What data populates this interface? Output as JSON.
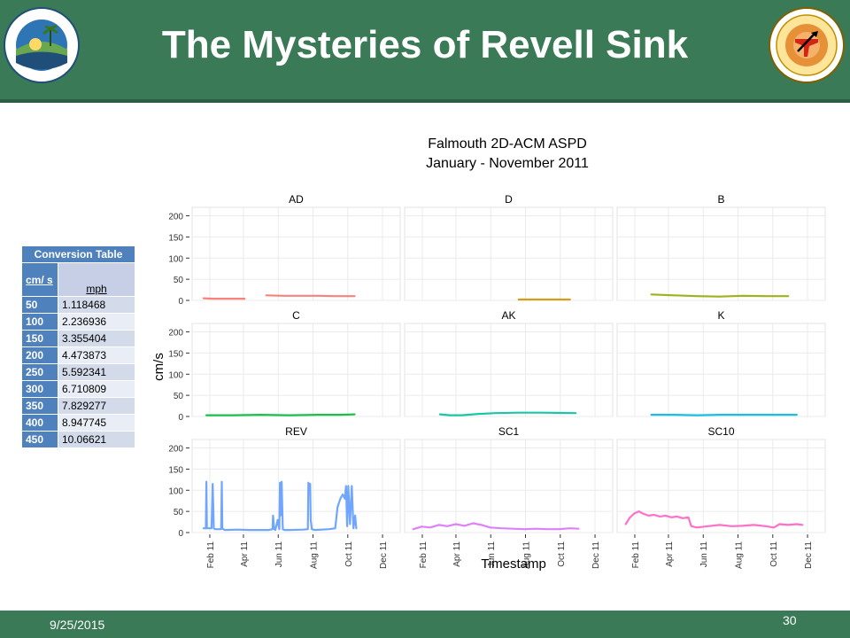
{
  "slide": {
    "title": "The Mysteries of Revell Sink",
    "date": "9/25/2015",
    "page_number": "30",
    "logo_left": "Florida Department of Environmental Protection",
    "logo_right": "Florida Geological Survey EST. 1907"
  },
  "conversion_table": {
    "title": "Conversion Table",
    "col1": "cm/ s",
    "col2": "mph",
    "rows": [
      {
        "cms": "50",
        "mph": "1.118468"
      },
      {
        "cms": "100",
        "mph": "2.236936"
      },
      {
        "cms": "150",
        "mph": "3.355404"
      },
      {
        "cms": "200",
        "mph": "4.473873"
      },
      {
        "cms": "250",
        "mph": "5.592341"
      },
      {
        "cms": "300",
        "mph": "6.710809"
      },
      {
        "cms": "350",
        "mph": "7.829277"
      },
      {
        "cms": "400",
        "mph": "8.947745"
      },
      {
        "cms": "450",
        "mph": "10.06621"
      }
    ]
  },
  "colors": {
    "header_green": "#3b7a57",
    "table_blue": "#4f81bd",
    "panel_bg": "#ebebeb"
  },
  "chart_data": {
    "type": "line",
    "title": "Falmouth 2D-ACM ASPD",
    "subtitle": "January - November 2011",
    "xlabel": "Timestamp",
    "ylabel": "cm/s",
    "ylim": [
      0,
      220
    ],
    "yticks": [
      0,
      50,
      100,
      150,
      200
    ],
    "xlim": [
      0,
      365
    ],
    "xticks": [
      {
        "label": "Feb 11",
        "day": 31
      },
      {
        "label": "Apr 11",
        "day": 90
      },
      {
        "label": "Jun 11",
        "day": 151
      },
      {
        "label": "Aug 11",
        "day": 212
      },
      {
        "label": "Oct 11",
        "day": 273
      },
      {
        "label": "Dec 11",
        "day": 334
      }
    ],
    "grid": true,
    "facets": [
      {
        "name": "AD",
        "color": "#f8766d",
        "segments": [
          {
            "x": [
              20,
              38,
              56,
              75,
              92
            ],
            "y": [
              5,
              4,
              4,
              4,
              4
            ]
          },
          {
            "x": [
              130,
              160,
              190,
              220,
              250,
              285
            ],
            "y": [
              12,
              11,
              11,
              11,
              10,
              10
            ]
          }
        ]
      },
      {
        "name": "D",
        "color": "#d39200",
        "segments": [
          {
            "x": [
              200,
              230,
              260,
              290
            ],
            "y": [
              2,
              2,
              2,
              2
            ]
          }
        ]
      },
      {
        "name": "B",
        "color": "#93aa00",
        "segments": [
          {
            "x": [
              60,
              100,
              140,
              180,
              220,
              260,
              300
            ],
            "y": [
              14,
              12,
              10,
              9,
              11,
              10,
              10
            ]
          }
        ]
      },
      {
        "name": "C",
        "color": "#00ba38",
        "segments": [
          {
            "x": [
              25,
              70,
              120,
              170,
              220,
              260,
              285
            ],
            "y": [
              3,
              3,
              4,
              3,
              4,
              4,
              5
            ]
          }
        ]
      },
      {
        "name": "AK",
        "color": "#00c19f",
        "segments": [
          {
            "x": [
              62,
              80,
              100,
              130,
              160,
              200,
              240,
              300
            ],
            "y": [
              5,
              3,
              3,
              6,
              8,
              9,
              9,
              8
            ]
          }
        ]
      },
      {
        "name": "K",
        "color": "#00b9e3",
        "segments": [
          {
            "x": [
              60,
              100,
              140,
              180,
              220,
              260,
              315
            ],
            "y": [
              4,
              4,
              3,
              4,
              4,
              4,
              4
            ]
          }
        ]
      },
      {
        "name": "REV",
        "color": "#619cff",
        "segments": [
          {
            "x": [
              20,
              24,
              25,
              26,
              34,
              36,
              38,
              40,
              45,
              51,
              52,
              53,
              55,
              57,
              80,
              100,
              135,
              141,
              142,
              144,
              146,
              150,
              153,
              154,
              155,
              157,
              159,
              162,
              170,
              195,
              203,
              204,
              206,
              207,
              208,
              210,
              215,
              240,
              251,
              255,
              260,
              264,
              268,
              270,
              272,
              274,
              277,
              280,
              283,
              286,
              288
            ],
            "y": [
              10,
              10,
              120,
              10,
              10,
              115,
              10,
              8,
              8,
              8,
              120,
              10,
              8,
              6,
              7,
              6,
              6,
              8,
              40,
              8,
              6,
              30,
              8,
              118,
              40,
              120,
              8,
              6,
              6,
              7,
              8,
              118,
              110,
              115,
              30,
              8,
              6,
              8,
              10,
              60,
              80,
              90,
              80,
              110,
              15,
              110,
              20,
              110,
              10,
              40,
              10
            ]
          }
        ]
      },
      {
        "name": "SC1",
        "color": "#db72fb",
        "segments": [
          {
            "x": [
              15,
              30,
              45,
              60,
              75,
              90,
              105,
              120,
              135,
              150,
              170,
              190,
              210,
              230,
              250,
              270,
              290,
              305
            ],
            "y": [
              8,
              14,
              12,
              18,
              15,
              20,
              16,
              22,
              18,
              12,
              10,
              9,
              8,
              9,
              8,
              8,
              10,
              9
            ]
          }
        ]
      },
      {
        "name": "SC10",
        "color": "#ff61c3",
        "segments": [
          {
            "x": [
              15,
              22,
              30,
              38,
              45,
              55,
              65,
              75,
              85,
              95,
              105,
              115,
              125,
              130,
              140,
              160,
              180,
              200,
              220,
              240,
              260,
              275,
              285,
              300,
              315,
              325
            ],
            "y": [
              20,
              35,
              45,
              50,
              45,
              40,
              42,
              38,
              40,
              36,
              38,
              34,
              36,
              15,
              12,
              15,
              18,
              15,
              16,
              18,
              15,
              12,
              20,
              18,
              20,
              18
            ]
          }
        ]
      }
    ]
  }
}
